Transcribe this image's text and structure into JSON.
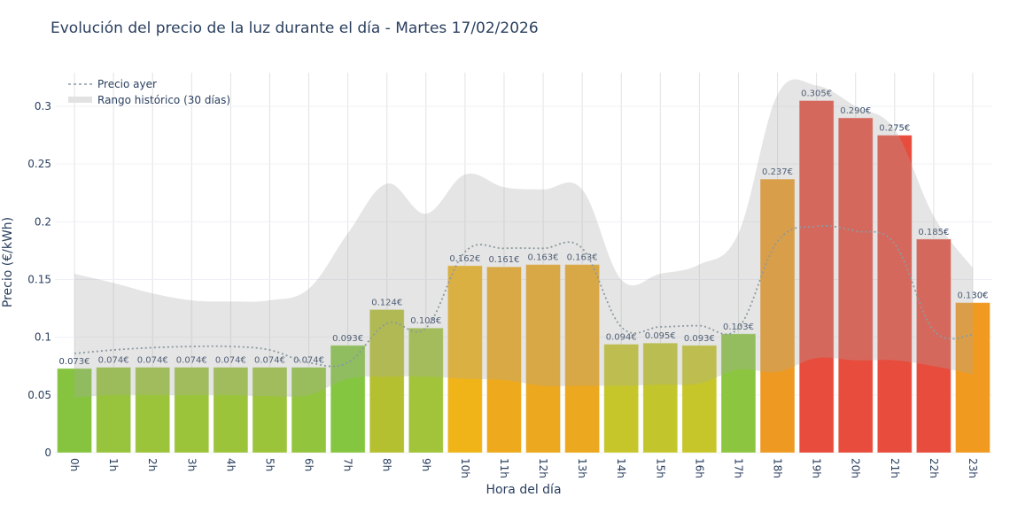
{
  "chart_data": {
    "type": "bar",
    "title": "Evolución del precio de la luz durante el día - Martes 17/02/2026",
    "xlabel": "Hora del día",
    "ylabel": "Precio (€/kWh)",
    "ylim": [
      0,
      0.33
    ],
    "yticks": [
      0,
      0.05,
      0.1,
      0.15,
      0.2,
      0.25,
      0.3
    ],
    "ytick_labels": [
      "0",
      "0.05",
      "0.1",
      "0.15",
      "0.2",
      "0.25",
      "0.3"
    ],
    "categories": [
      "0h",
      "1h",
      "2h",
      "3h",
      "4h",
      "5h",
      "6h",
      "7h",
      "8h",
      "9h",
      "10h",
      "11h",
      "12h",
      "13h",
      "14h",
      "15h",
      "16h",
      "17h",
      "18h",
      "19h",
      "20h",
      "21h",
      "22h",
      "23h"
    ],
    "values": [
      0.073,
      0.074,
      0.074,
      0.074,
      0.074,
      0.074,
      0.074,
      0.093,
      0.124,
      0.108,
      0.162,
      0.161,
      0.163,
      0.163,
      0.094,
      0.095,
      0.093,
      0.103,
      0.237,
      0.305,
      0.29,
      0.275,
      0.185,
      0.13
    ],
    "data_labels": [
      "0.073€",
      "0.074€",
      "0.074€",
      "0.074€",
      "0.074€",
      "0.074€",
      "0.074€",
      "0.093€",
      "0.124€",
      "0.108€",
      "0.162€",
      "0.161€",
      "0.163€",
      "0.163€",
      "0.094€",
      "0.095€",
      "0.093€",
      "0.103€",
      "0.237€",
      "0.305€",
      "0.290€",
      "0.275€",
      "0.185€",
      "0.130€"
    ],
    "bar_colors": [
      "#86c440",
      "#97c43c",
      "#9cc43b",
      "#9cc43b",
      "#9cc43b",
      "#9cc43b",
      "#92c43d",
      "#85c640",
      "#b4c030",
      "#a2c43a",
      "#f0b418",
      "#eeaa1c",
      "#eca81e",
      "#eca81e",
      "#c6c62a",
      "#c2c62c",
      "#c6c62a",
      "#8cc640",
      "#ee9a22",
      "#e84c3c",
      "#e84c3c",
      "#e84c3c",
      "#e84c3c",
      "#f09a20"
    ],
    "series": [
      {
        "name": "Precio ayer",
        "type": "line",
        "style": "dotted",
        "color": "#8c9aa0",
        "values": [
          0.086,
          0.089,
          0.091,
          0.092,
          0.092,
          0.089,
          0.078,
          0.078,
          0.112,
          0.108,
          0.174,
          0.177,
          0.177,
          0.177,
          0.109,
          0.109,
          0.11,
          0.108,
          0.183,
          0.196,
          0.192,
          0.181,
          0.106,
          0.102
        ]
      },
      {
        "name": "Rango histórico (30 días)",
        "type": "band",
        "color": "#c8c8c8",
        "max": [
          0.155,
          0.147,
          0.138,
          0.132,
          0.131,
          0.132,
          0.142,
          0.19,
          0.233,
          0.207,
          0.241,
          0.23,
          0.228,
          0.228,
          0.15,
          0.155,
          0.163,
          0.19,
          0.31,
          0.318,
          0.3,
          0.28,
          0.205,
          0.16
        ],
        "min": [
          0.048,
          0.05,
          0.05,
          0.05,
          0.05,
          0.049,
          0.05,
          0.064,
          0.066,
          0.066,
          0.064,
          0.063,
          0.058,
          0.058,
          0.058,
          0.059,
          0.06,
          0.072,
          0.07,
          0.082,
          0.08,
          0.08,
          0.075,
          0.068
        ]
      }
    ],
    "legend_position": "top-left",
    "grid": true
  }
}
